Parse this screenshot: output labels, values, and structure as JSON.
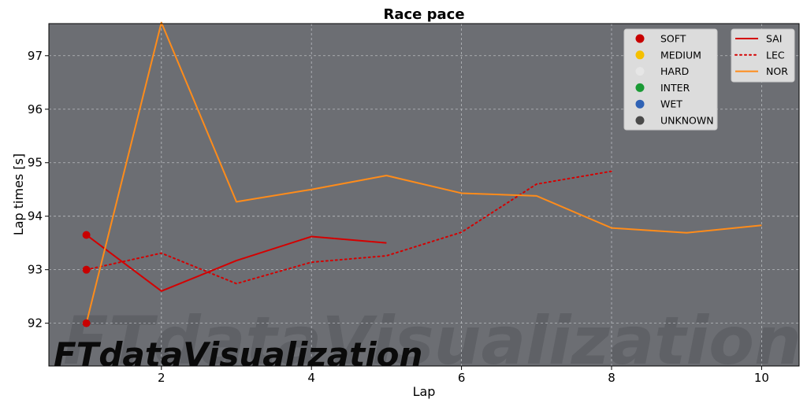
{
  "chart_data": {
    "type": "line",
    "title": "Race pace",
    "xlabel": "Lap",
    "ylabel": "Lap times [s]",
    "xlim": [
      0.5,
      10.5
    ],
    "ylim": [
      91.2,
      97.6
    ],
    "x_ticks": [
      2,
      4,
      6,
      8,
      10
    ],
    "y_ticks": [
      92,
      93,
      94,
      95,
      96,
      97
    ],
    "grid": true,
    "background": "#6c6e73",
    "series": [
      {
        "name": "SAI",
        "color": "#d40000",
        "linestyle": "solid",
        "x": [
          1,
          2,
          3,
          4,
          5
        ],
        "y": [
          93.65,
          92.6,
          93.17,
          93.62,
          93.5
        ]
      },
      {
        "name": "LEC",
        "color": "#d40000",
        "linestyle": "dotted",
        "x": [
          1,
          2,
          3,
          4,
          5,
          6,
          7,
          8
        ],
        "y": [
          93.0,
          93.31,
          92.74,
          93.14,
          93.26,
          93.7,
          94.6,
          94.84
        ]
      },
      {
        "name": "NOR",
        "color": "#ff8c1a",
        "linestyle": "solid",
        "x": [
          1,
          2,
          3,
          4,
          5,
          6,
          7,
          8,
          9,
          10
        ],
        "y": [
          92.0,
          97.62,
          94.27,
          94.5,
          94.76,
          94.43,
          94.38,
          93.78,
          93.69,
          93.83
        ]
      }
    ],
    "compound_markers": [
      {
        "compound": "SOFT",
        "x": 1,
        "y": 93.65
      },
      {
        "compound": "SOFT",
        "x": 1,
        "y": 93.0
      },
      {
        "compound": "SOFT",
        "x": 1,
        "y": 92.0
      }
    ],
    "compound_legend": {
      "placement": "top-right",
      "items": [
        {
          "label": "SOFT",
          "color": "#c80000"
        },
        {
          "label": "MEDIUM",
          "color": "#f5c000"
        },
        {
          "label": "HARD",
          "color": "#e6e6e6"
        },
        {
          "label": "INTER",
          "color": "#1a9a35"
        },
        {
          "label": "WET",
          "color": "#2f62b5"
        },
        {
          "label": "UNKNOWN",
          "color": "#4a4a4a"
        }
      ]
    },
    "driver_legend": {
      "placement": "top-right"
    },
    "watermark": "FTdataVisualization"
  }
}
